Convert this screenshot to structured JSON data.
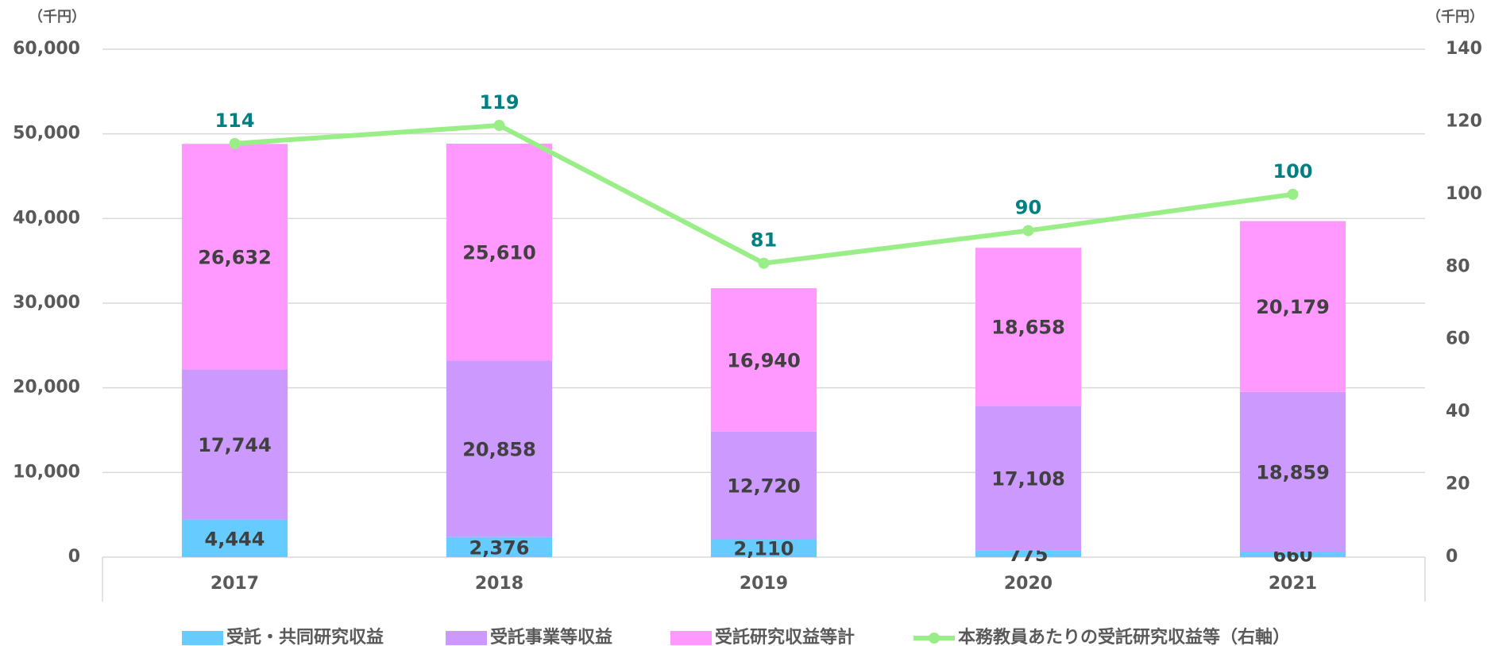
{
  "chart_data": {
    "type": "bar",
    "y_unit": "（千円）",
    "y2_unit": "（千円）",
    "categories": [
      "2017",
      "2018",
      "2019",
      "2020",
      "2021"
    ],
    "series": [
      {
        "name": "受託・共同研究収益",
        "color": "#66ccff",
        "values": [
          4444,
          2376,
          2110,
          775,
          660
        ],
        "value_labels": [
          "4,444",
          "2,376",
          "2,110",
          "775",
          "660"
        ]
      },
      {
        "name": "受託事業等収益",
        "color": "#cc99ff",
        "values": [
          17744,
          20858,
          12720,
          17108,
          18859
        ],
        "value_labels": [
          "17,744",
          "20,858",
          "12,720",
          "17,108",
          "18,859"
        ]
      },
      {
        "name": "受託研究収益等計",
        "color": "#ff99ff",
        "values": [
          26632,
          25610,
          16940,
          18658,
          20179
        ],
        "value_labels": [
          "26,632",
          "25,610",
          "16,940",
          "18,658",
          "20,179"
        ]
      },
      {
        "name": "本務教員あたりの受託研究収益等（右軸）",
        "type": "line",
        "axis": "y2",
        "color": "#99ee88",
        "label_color": "#008080",
        "values": [
          114,
          119,
          81,
          90,
          100
        ]
      }
    ],
    "ylim": [
      0,
      60000
    ],
    "yticks": [
      0,
      {
        "value": 10000,
        "label": "10,000"
      },
      {
        "value": 20000,
        "label": "20,000"
      },
      {
        "value": 30000,
        "label": "30,000"
      },
      {
        "value": 40000,
        "label": "40,000"
      },
      {
        "value": 50000,
        "label": "50,000"
      },
      {
        "value": 60000,
        "label": "60,000"
      }
    ],
    "y2lim": [
      0,
      140
    ],
    "y2ticks": [
      0,
      20,
      40,
      60,
      80,
      100,
      120,
      140
    ],
    "grid": true,
    "stacked": true,
    "legend": "bottom"
  }
}
